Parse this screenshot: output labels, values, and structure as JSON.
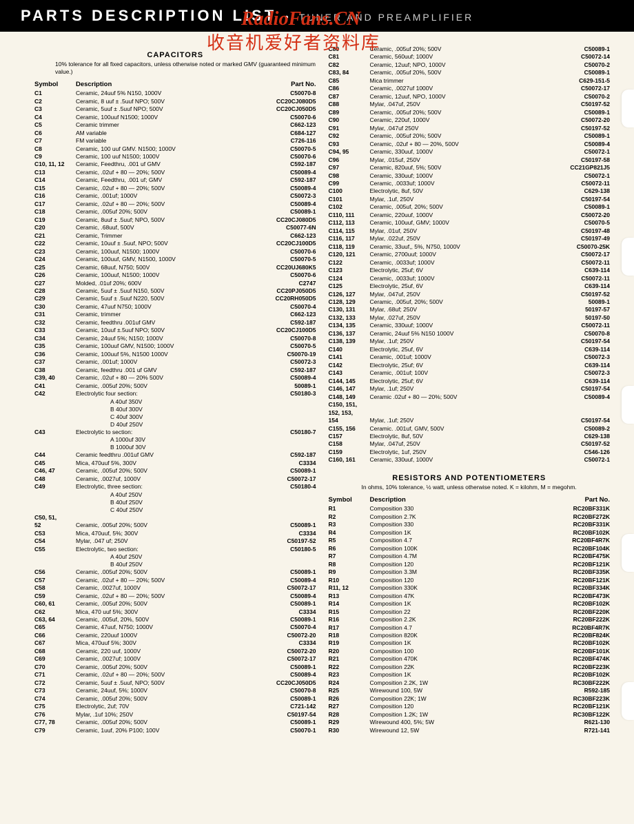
{
  "banner": {
    "title": "PARTS  DESCRIPTION  LIST",
    "sub": "TUNER  AND  PREAMPLIFIER"
  },
  "watermark": {
    "line1": "RadioFans.CN",
    "line2": "收音机爱好者资料库"
  },
  "capacitors": {
    "title": "CAPACITORS",
    "note": "10% tolerance for all fixed capacitors, unless otherwise noted or marked GMV (guaranteed minimum value.)",
    "headers": {
      "sym": "Symbol",
      "desc": "Description",
      "part": "Part No."
    },
    "rows": [
      {
        "s": "C1",
        "d": "Ceramic, 24uuf 5% N150, 1000V",
        "p": "C50070-8"
      },
      {
        "s": "C2",
        "d": "Ceramic, 8 uuf ± .5uuf NPO; 500V",
        "p": "CC20CJ080D5"
      },
      {
        "s": "C3",
        "d": "Ceramic, 5uuf ± .5uuf NPO; 500V",
        "p": "CC20CJ050D5"
      },
      {
        "s": "C4",
        "d": "Ceramic, 100uuf N1500; 1000V",
        "p": "C50070-6"
      },
      {
        "s": "C5",
        "d": "Ceramic trimmer",
        "p": "C662-123"
      },
      {
        "s": "C6",
        "d": "AM variable",
        "p": "C684-127"
      },
      {
        "s": "C7",
        "d": "FM variable",
        "p": "C726-116"
      },
      {
        "s": "C8",
        "d": "Ceramic, 100 uuf GMV. N1500; 1000V",
        "p": "C50070-5"
      },
      {
        "s": "C9",
        "d": "Ceramic, 100 uuf N1500; 1000V",
        "p": "C50070-6"
      },
      {
        "s": "C10, 11, 12",
        "d": "Ceramic, Feedthru, .001 uf GMV",
        "p": "C592-187"
      },
      {
        "s": "C13",
        "d": "Ceramic, .02uf + 80 — 20%; 500V",
        "p": "C50089-4"
      },
      {
        "s": "C14",
        "d": "Ceramic, Feedthru, .001 uf; GMV",
        "p": "C592-187"
      },
      {
        "s": "C15",
        "d": "Ceramic, .02uf + 80 — 20%; 500V",
        "p": "C50089-4"
      },
      {
        "s": "C16",
        "d": "Ceramic, .001uf; 1000V",
        "p": "C50072-3"
      },
      {
        "s": "C17",
        "d": "Ceramic, .02uf + 80 — 20%; 500V",
        "p": "C50089-4"
      },
      {
        "s": "C18",
        "d": "Ceramic, .005uf  20%;  500V",
        "p": "C50089-1"
      },
      {
        "s": "C19",
        "d": "Ceramic, 8uuf ± .5uuf; NPO, 500V",
        "p": "CC20CJ080D5"
      },
      {
        "s": "C20",
        "d": "Ceramic, .68uuf, 500V",
        "p": "C50077-6N"
      },
      {
        "s": "C21",
        "d": "Ceramic, Trimmer",
        "p": "C662-123"
      },
      {
        "s": "C22",
        "d": "Ceramic, 10uuf ± .5uuf, NPO; 500V",
        "p": "CC20CJ100D5"
      },
      {
        "s": "C23",
        "d": "Ceramic, 100uuf, N1500; 1000V",
        "p": "C50070-6"
      },
      {
        "s": "C24",
        "d": "Ceramic, 100uuf, GMV, N1500, 1000V",
        "p": "C50070-5"
      },
      {
        "s": "C25",
        "d": "Ceramic, 68uuf, N750; 500V",
        "p": "CC20UJ680K5"
      },
      {
        "s": "C26",
        "d": "Ceramic,  100uuf, N1500;  1000V",
        "p": "C50070-6"
      },
      {
        "s": "C27",
        "d": "Molded, .01uf  20%;  600V",
        "p": "C2747"
      },
      {
        "s": "C28",
        "d": "Ceramic, 5uuf ± .5uuf N150, 500V",
        "p": "CC20PJ050D5"
      },
      {
        "s": "C29",
        "d": "Ceramic, 5uuf ± .5uuf N220, 500V",
        "p": "CC20RH050D5"
      },
      {
        "s": "C30",
        "d": "Ceramic, 47uuf N750; 1000V",
        "p": "C50070-4"
      },
      {
        "s": "C31",
        "d": "Ceramic, trimmer",
        "p": "C662-123"
      },
      {
        "s": "C32",
        "d": "Ceramic, feedthru .001uf GMV",
        "p": "C592-187"
      },
      {
        "s": "C33",
        "d": "Ceramic, 10uuf ±.5uuf NPO; 500V",
        "p": "CC20CJ100D5"
      },
      {
        "s": "C34",
        "d": "Ceramic, 24uuf 5%; N150; 1000V",
        "p": "C50070-8"
      },
      {
        "s": "C35",
        "d": "Ceramic,  100uuf GMV, N1500; 1000V",
        "p": "C50070-5"
      },
      {
        "s": "C36",
        "d": "Ceramic, 100uuf 5%, N1500 1000V",
        "p": "C50070-19"
      },
      {
        "s": "C37",
        "d": "Ceramic, .001uf; 1000V",
        "p": "C50072-3"
      },
      {
        "s": "C38",
        "d": "Ceramic, feedthru .001 uf GMV",
        "p": "C592-187"
      },
      {
        "s": "C39, 40",
        "d": "Ceramic, .02uf + 80 — 20% 500V",
        "p": "C50089-4"
      },
      {
        "s": "C41",
        "d": "Ceramic, .005uf 20%; 500V",
        "p": "50089-1"
      },
      {
        "s": "C42",
        "d": "Electrolytic four section:",
        "p": "C50180-3"
      }
    ],
    "c42sub": [
      "A   40uf  350V",
      "B   40uf  300V",
      "C   40uf  300V",
      "D   40uf  250V"
    ],
    "rows2": [
      {
        "s": "C43",
        "d": "Electrolytic to section:",
        "p": "C50180-7"
      }
    ],
    "c43sub": [
      "A   1000uf  30V",
      "B   1000uf  30V"
    ],
    "rows3": [
      {
        "s": "C44",
        "d": "Ceramic feedthru .001uf GMV",
        "p": "C592-187"
      },
      {
        "s": "C45",
        "d": "Mica, 470uuf 5%, 300V",
        "p": "C3334"
      },
      {
        "s": "C46, 47",
        "d": "Ceramic, .005uf   20%; 500V",
        "p": "C50089-1"
      },
      {
        "s": "C48",
        "d": "Ceramic, .0027uf, 1000V",
        "p": "C50072-17"
      },
      {
        "s": "C49",
        "d": "Electrolytic, three section:",
        "p": "C50180-4"
      }
    ],
    "c49sub": [
      "A   40uf  250V",
      "B   40uf  250V",
      "C   40uf  250V"
    ],
    "rows4": [
      {
        "s": "C50, 51,",
        "d": "",
        "p": ""
      },
      {
        "s": "   52",
        "d": "Ceramic, .005uf 20%; 500V",
        "p": "C50089-1"
      },
      {
        "s": "C53",
        "d": "Mica, 470uuf, 5%; 300V",
        "p": "C3334"
      },
      {
        "s": "C54",
        "d": "Mylar, .047 uf; 250V",
        "p": "C50197-52"
      },
      {
        "s": "C55",
        "d": "Electrolytic, two section:",
        "p": "C50180-5"
      }
    ],
    "c55sub": [
      "A   40uf  250V",
      "B   40uf  250V"
    ],
    "rows5": [
      {
        "s": "C56",
        "d": "Ceramic, .005uf 20%; 500V",
        "p": "C50089-1"
      },
      {
        "s": "C57",
        "d": "Ceramic, .02uf + 80 — 20%; 500V",
        "p": "C50089-4"
      },
      {
        "s": "C58",
        "d": "Ceramic, .0027uf, 1000V",
        "p": "C50072-17"
      },
      {
        "s": "C59",
        "d": "Ceramic, .02uf + 80 — 20%; 500V",
        "p": "C50089-4"
      },
      {
        "s": "C60, 61",
        "d": "Ceramic, .005uf 20%; 500V",
        "p": "C50089-1"
      },
      {
        "s": "C62",
        "d": "Mica, 470 uuf 5%; 300V",
        "p": "C3334"
      },
      {
        "s": "C63, 64",
        "d": "Ceramic, .005uf, 20%, 500V",
        "p": "C50089-1"
      },
      {
        "s": "C65",
        "d": "Ceramic, 47uuf, N750; 1000V",
        "p": "C50070-4"
      },
      {
        "s": "C66",
        "d": "Ceramic,  220uuf 1000V",
        "p": "C50072-20"
      },
      {
        "s": "C67",
        "d": "Mica, 470uuf 5%; 300V",
        "p": "C3334"
      },
      {
        "s": "C68",
        "d": "Ceramic, 220  uuf, 1000V",
        "p": "C50072-20"
      },
      {
        "s": "C69",
        "d": "Ceramic, .0027uf; 1000V",
        "p": "C50072-17"
      },
      {
        "s": "C70",
        "d": "Ceramic, .005uf 20%; 500V",
        "p": "C50089-1"
      },
      {
        "s": "C71",
        "d": "Ceramic, .02uf + 80 — 20%; 500V",
        "p": "C50089-4"
      },
      {
        "s": "C72",
        "d": "Ceramic, 5uuf ± .5uuf, NPO; 500V",
        "p": "CC20CJ050D5"
      },
      {
        "s": "C73",
        "d": "Ceramic, 24uuf, 5%; 1000V",
        "p": "C50070-8"
      },
      {
        "s": "C74",
        "d": "Ceramic, .005uf 20%; 500V",
        "p": "C50089-1"
      },
      {
        "s": "C75",
        "d": "Electrolytic, 2uf; 70V",
        "p": "C721-142"
      },
      {
        "s": "C76",
        "d": "Mylar, .1uf 10%; 250V",
        "p": "C50197-54"
      },
      {
        "s": "C77, 78",
        "d": "Ceramic, .005uf 20%; 500V",
        "p": "C50089-1"
      },
      {
        "s": "C79",
        "d": "Ceramic, 1uuf, 20% P100; 100V",
        "p": "C50070-1"
      }
    ],
    "rows_r": [
      {
        "s": "C80",
        "d": "Ceramic, .005uf  20%;  500V",
        "p": "C50089-1"
      },
      {
        "s": "C81",
        "d": "Ceramic, 560uuf; 1000V",
        "p": "C50072-14"
      },
      {
        "s": "C82",
        "d": "Ceramic, 12uuf; NPO, 1000V",
        "p": "C50070-2"
      },
      {
        "s": "C83, 84",
        "d": "Ceramic, .005uf 20%, 500V",
        "p": "C50089-1"
      },
      {
        "s": "C85",
        "d": "Mica trimmer",
        "p": "C629-151-5"
      },
      {
        "s": "C86",
        "d": "Ceramic, .0027uf 1000V",
        "p": "C50072-17"
      },
      {
        "s": "C87",
        "d": "Ceramic, 12uuf, NPO, 1000V",
        "p": "C50070-2"
      },
      {
        "s": "C88",
        "d": "Mylar, .047uf, 250V",
        "p": "C50197-52"
      },
      {
        "s": "C89",
        "d": "Ceramic, .005uf 20%; 500V",
        "p": "C50089-1"
      },
      {
        "s": "C90",
        "d": "Ceramic, 220uf, 1000V",
        "p": "C50072-20"
      },
      {
        "s": "C91",
        "d": "Mylar, .047uf 250V",
        "p": "C50197-52"
      },
      {
        "s": "C92",
        "d": "Ceramic, .005uf  20%;  500V",
        "p": "C50089-1"
      },
      {
        "s": "C93",
        "d": "Ceramic, .02uf + 80 — 20%, 500V",
        "p": "C50089-4"
      },
      {
        "s": "C94, 95",
        "d": "Ceramic, 330uuf, 1000V",
        "p": "C50072-1"
      },
      {
        "s": "C96",
        "d": "Mylar, .015uf, 250V",
        "p": "C50197-58"
      },
      {
        "s": "C97",
        "d": "Ceramic, 820uuf, 5%; 500V",
        "p": "CC21GP821J5"
      },
      {
        "s": "C98",
        "d": "Ceramic, 330uuf; 1000V",
        "p": "C50072-1"
      },
      {
        "s": "C99",
        "d": "Ceramic, .0033uf; 1000V",
        "p": "C50072-11"
      },
      {
        "s": "C100",
        "d": "Electrolytic, 8uf, 50V",
        "p": "C629-138"
      },
      {
        "s": "C101",
        "d": "Mylar, .1uf, 250V",
        "p": "C50197-54"
      },
      {
        "s": "C102",
        "d": "Ceramic, .005uf, 20%; 500V",
        "p": "C50089-1"
      },
      {
        "s": "C110, 111",
        "d": "Ceramic, 220uuf, 1000V",
        "p": "C50072-20"
      },
      {
        "s": "C112, 113",
        "d": "Ceramic, 100uuf, GMV; 1000V",
        "p": "C50070-5"
      },
      {
        "s": "C114, 115",
        "d": "Mylar, .01uf, 250V",
        "p": "C50197-48"
      },
      {
        "s": "C116, 117",
        "d": "Mylar, .022uf, 250V",
        "p": "C50197-49"
      },
      {
        "s": "C118, 119",
        "d": "Ceramic, 33uuf,, 5%, N750, 1000V",
        "p": "C50070-25K"
      },
      {
        "s": "C120, 121",
        "d": "Ceramic, 2700uuf; 1000V",
        "p": "C50072-17"
      },
      {
        "s": "C122",
        "d": "Ceramic, .0033uf; 1000V",
        "p": "C50072-11"
      },
      {
        "s": "C123",
        "d": "Electrolytic, 25uf; 6V",
        "p": "C639-114"
      },
      {
        "s": "C124",
        "d": "Ceramic, .0033uf; 1000V",
        "p": "C50072-11"
      },
      {
        "s": "C125",
        "d": "Electrolytic, 25uf, 6V",
        "p": "C639-114"
      },
      {
        "s": "C126, 127",
        "d": "Mylar, .047uf, 250V",
        "p": "C50197-52"
      },
      {
        "s": "C128, 129",
        "d": "Ceramic, .005uf, 20%; 500V",
        "p": "50089-1"
      },
      {
        "s": "C130, 131",
        "d": "Mylar, .68uf; 250V",
        "p": "50197-57"
      },
      {
        "s": "C132, 133",
        "d": "Mylar, .027uf, 250V",
        "p": "50197-50"
      },
      {
        "s": "C134, 135",
        "d": "Ceramic, 330uuf; 1000V",
        "p": "C50072-11"
      },
      {
        "s": "C136, 137",
        "d": "Ceramic, 24uuf  5% N150   1000V",
        "p": "C50070-8"
      },
      {
        "s": "C138, 139",
        "d": "Mylar, .1uf; 250V",
        "p": "C50197-54"
      },
      {
        "s": "C140",
        "d": "Electrolytic, 25uf, 6V",
        "p": "C639-114"
      },
      {
        "s": "C141",
        "d": "Ceramic,  .001uf; 1000V",
        "p": "C50072-3"
      },
      {
        "s": "C142",
        "d": "Electrolytic, 25uf; 6V",
        "p": "C639-114"
      },
      {
        "s": "C143",
        "d": "Ceramic, .001uf; 100V",
        "p": "C50072-3"
      },
      {
        "s": "C144, 145",
        "d": "Electrolytic, 25uf; 6V",
        "p": "C639-114"
      },
      {
        "s": "C146, 147",
        "d": "Mylar, .1uf; 250V",
        "p": "C50197-54"
      },
      {
        "s": "C148, 149",
        "d": "Ceramic .02uf + 80 — 20%; 500V",
        "p": "C50089-4"
      },
      {
        "s": "C150, 151,",
        "d": "",
        "p": ""
      },
      {
        "s": "  152, 153,",
        "d": "",
        "p": ""
      },
      {
        "s": "  154",
        "d": "Mylar, .1uf; 250V",
        "p": "C50197-54"
      },
      {
        "s": "C155, 156",
        "d": "Ceramic. .001uf, GMV, 500V",
        "p": "C50089-2"
      },
      {
        "s": "C157",
        "d": "Electrolytic, 8uf, 50V",
        "p": "C629-138"
      },
      {
        "s": "C158",
        "d": "Mylar, .047uf, 250V",
        "p": "C50197-52"
      },
      {
        "s": "C159",
        "d": "Electrolytic, 1uf, 250V",
        "p": "C546-126"
      },
      {
        "s": "C160, 161",
        "d": "Ceramic, 330uuf, 1000V",
        "p": "C50072-1"
      }
    ]
  },
  "resistors": {
    "title": "RESISTORS AND POTENTIOMETERS",
    "note": "In ohms, 10% tolerance, ½ watt, unless otherwise noted.  K = kilohm, M = megohm.",
    "headers": {
      "sym": "Symbol",
      "desc": "Description",
      "part": "Part No."
    },
    "rows": [
      {
        "s": "R1",
        "d": "Composition  330",
        "p": "RC20BF331K"
      },
      {
        "s": "R2",
        "d": "Composition  2.7K",
        "p": "RC20BF272K"
      },
      {
        "s": "R3",
        "d": "Composition  330",
        "p": "RC20BF331K"
      },
      {
        "s": "R4",
        "d": "Composition  1K",
        "p": "RC20BF102K"
      },
      {
        "s": "R5",
        "d": "Composition  4.7",
        "p": "RC20BF4R7K"
      },
      {
        "s": "R6",
        "d": "Composition  100K",
        "p": "RC20BF104K"
      },
      {
        "s": "R7",
        "d": "Composition  4.7M",
        "p": "RC20BF475K"
      },
      {
        "s": "R8",
        "d": "Composition  120",
        "p": "RC20BF121K"
      },
      {
        "s": "R9",
        "d": "Composition  3.3M",
        "p": "RC20BF335K"
      },
      {
        "s": "R10",
        "d": "Composition  120",
        "p": "RC20BF121K"
      },
      {
        "s": "R11, 12",
        "d": "Composition  330K",
        "p": "RC20BF334K"
      },
      {
        "s": "R13",
        "d": "Composition  47K",
        "p": "RC20BF473K"
      },
      {
        "s": "R14",
        "d": "Composition  1K",
        "p": "RC20BF102K"
      },
      {
        "s": "R15",
        "d": "Composition  22",
        "p": "RC20BF220K"
      },
      {
        "s": "R16",
        "d": "Composition  2.2K",
        "p": "RC20BF222K"
      },
      {
        "s": "R17",
        "d": "Composition  4.7",
        "p": "RC20BF4R7K"
      },
      {
        "s": "R18",
        "d": "Composition  820K",
        "p": "RC20BF824K"
      },
      {
        "s": "R19",
        "d": "Composition  1K",
        "p": "RC20BF102K"
      },
      {
        "s": "R20",
        "d": "Composition  100",
        "p": "RC20BF101K"
      },
      {
        "s": "R21",
        "d": "Composition  470K",
        "p": "RC20BF474K"
      },
      {
        "s": "R22",
        "d": "Composition  22K",
        "p": "RC20BF223K"
      },
      {
        "s": "R23",
        "d": "Composition  1K",
        "p": "RC20BF102K"
      },
      {
        "s": "R24",
        "d": "Composition  2.2K, 1W",
        "p": "RC30BF222K"
      },
      {
        "s": "R25",
        "d": "Wirewound 100, 5W",
        "p": "R592-185"
      },
      {
        "s": "R26",
        "d": "Composition  22K; 1W",
        "p": "RC30BF223K"
      },
      {
        "s": "R27",
        "d": "Composition  120",
        "p": "RC20BF121K"
      },
      {
        "s": "R28",
        "d": "Composition  1.2K; 1W",
        "p": "RC30BF122K"
      },
      {
        "s": "R29",
        "d": "Wirewound 400, 5%; 5W",
        "p": "R621-130"
      },
      {
        "s": "R30",
        "d": "Wirewound 12, 5W",
        "p": "R721-141"
      }
    ]
  },
  "notches": [
    130,
    345,
    560,
    775,
    990
  ]
}
